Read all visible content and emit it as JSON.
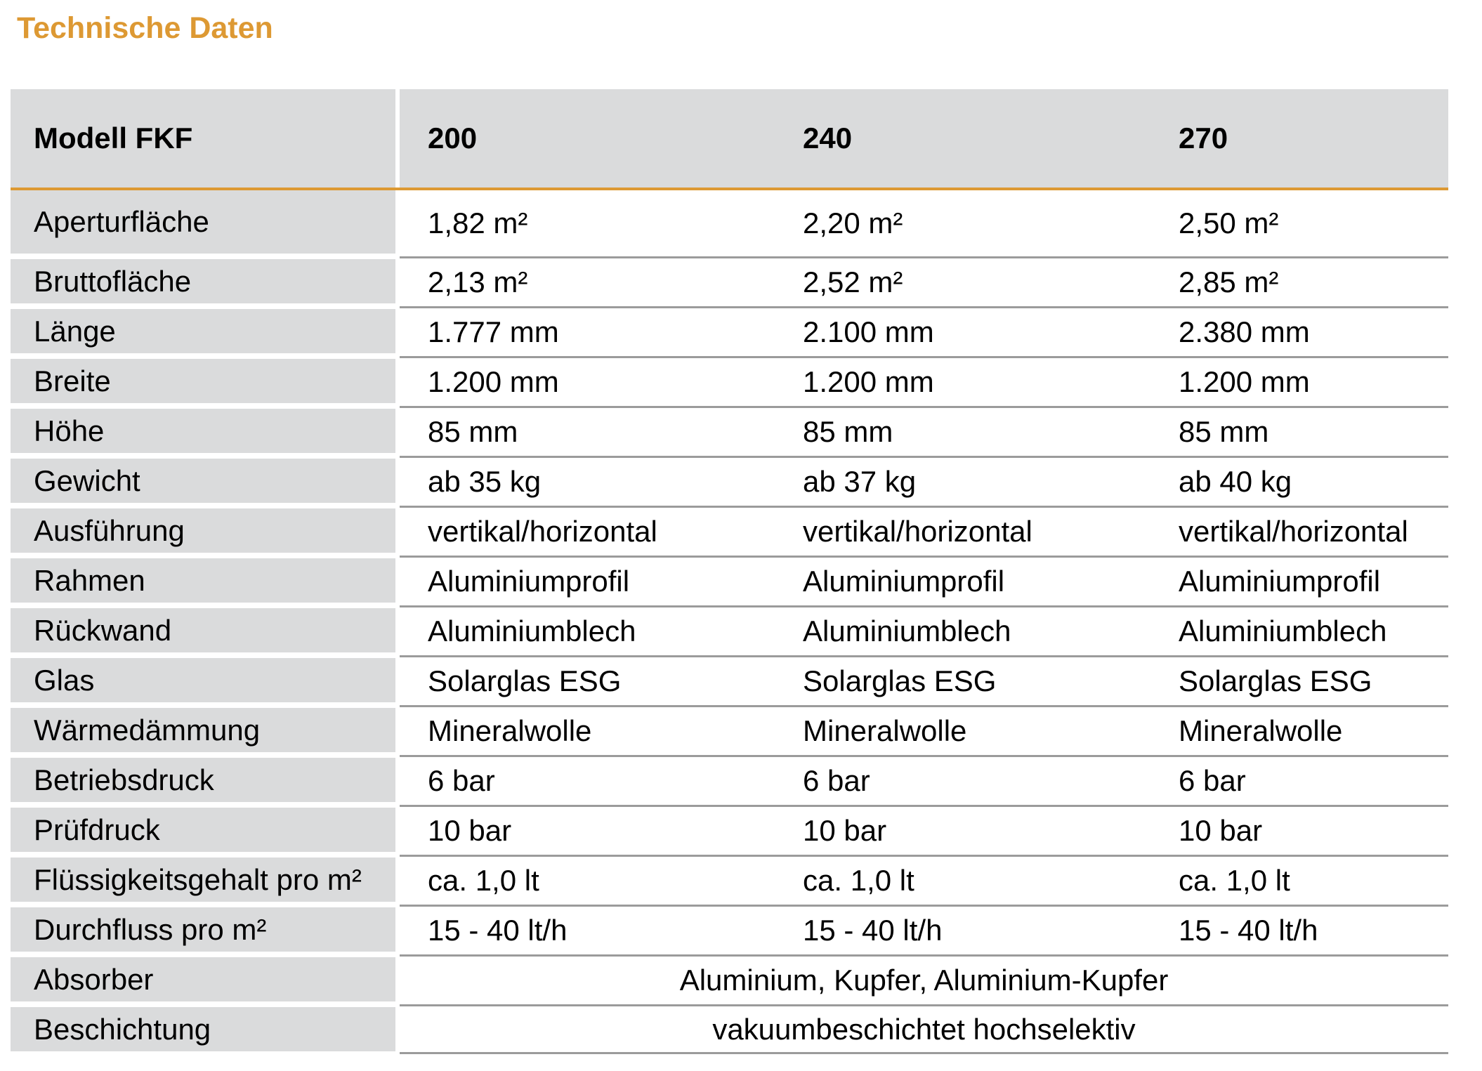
{
  "title": "Technische Daten",
  "colors": {
    "accent_orange": "#DD9933",
    "cell_gray": "#DADBDC",
    "separator_gray": "#9B9B9B",
    "text_black": "#000000"
  },
  "table": {
    "header": {
      "label": "Modell FKF",
      "columns": [
        "200",
        "240",
        "270"
      ]
    },
    "rows": [
      {
        "label": "Aperturfläche",
        "values": [
          "1,82 m²",
          "2,20 m²",
          "2,50 m²"
        ]
      },
      {
        "label": "Bruttofläche",
        "values": [
          "2,13 m²",
          "2,52 m²",
          "2,85 m²"
        ]
      },
      {
        "label": "Länge",
        "values": [
          "1.777 mm",
          "2.100 mm",
          "2.380 mm"
        ]
      },
      {
        "label": "Breite",
        "values": [
          "1.200 mm",
          "1.200 mm",
          "1.200 mm"
        ]
      },
      {
        "label": "Höhe",
        "values": [
          "85 mm",
          "85 mm",
          "85 mm"
        ]
      },
      {
        "label": "Gewicht",
        "values": [
          "ab 35 kg",
          "ab 37 kg",
          "ab 40 kg"
        ]
      },
      {
        "label": "Ausführung",
        "values": [
          "vertikal/horizontal",
          "vertikal/horizontal",
          "vertikal/horizontal"
        ]
      },
      {
        "label": "Rahmen",
        "values": [
          "Aluminiumprofil",
          "Aluminiumprofil",
          "Aluminiumprofil"
        ]
      },
      {
        "label": "Rückwand",
        "values": [
          "Aluminiumblech",
          "Aluminiumblech",
          "Aluminiumblech"
        ]
      },
      {
        "label": "Glas",
        "values": [
          "Solarglas ESG",
          "Solarglas ESG",
          "Solarglas ESG"
        ]
      },
      {
        "label": "Wärmedämmung",
        "values": [
          "Mineralwolle",
          "Mineralwolle",
          "Mineralwolle"
        ]
      },
      {
        "label": "Betriebsdruck",
        "values": [
          "6 bar",
          "6 bar",
          "6 bar"
        ]
      },
      {
        "label": "Prüfdruck",
        "values": [
          "10 bar",
          "10 bar",
          "10 bar"
        ]
      },
      {
        "label": "Flüssigkeitsgehalt pro m²",
        "values": [
          "ca. 1,0 lt",
          "ca. 1,0 lt",
          "ca. 1,0 lt"
        ]
      },
      {
        "label": "Durchfluss pro m²",
        "values": [
          "15 - 40 lt/h",
          "15 - 40 lt/h",
          "15 - 40 lt/h"
        ]
      },
      {
        "label": "Absorber",
        "merged": "Aluminium, Kupfer, Aluminium-Kupfer"
      },
      {
        "label": "Beschichtung",
        "merged": "vakuumbeschichtet hochselektiv"
      }
    ]
  }
}
